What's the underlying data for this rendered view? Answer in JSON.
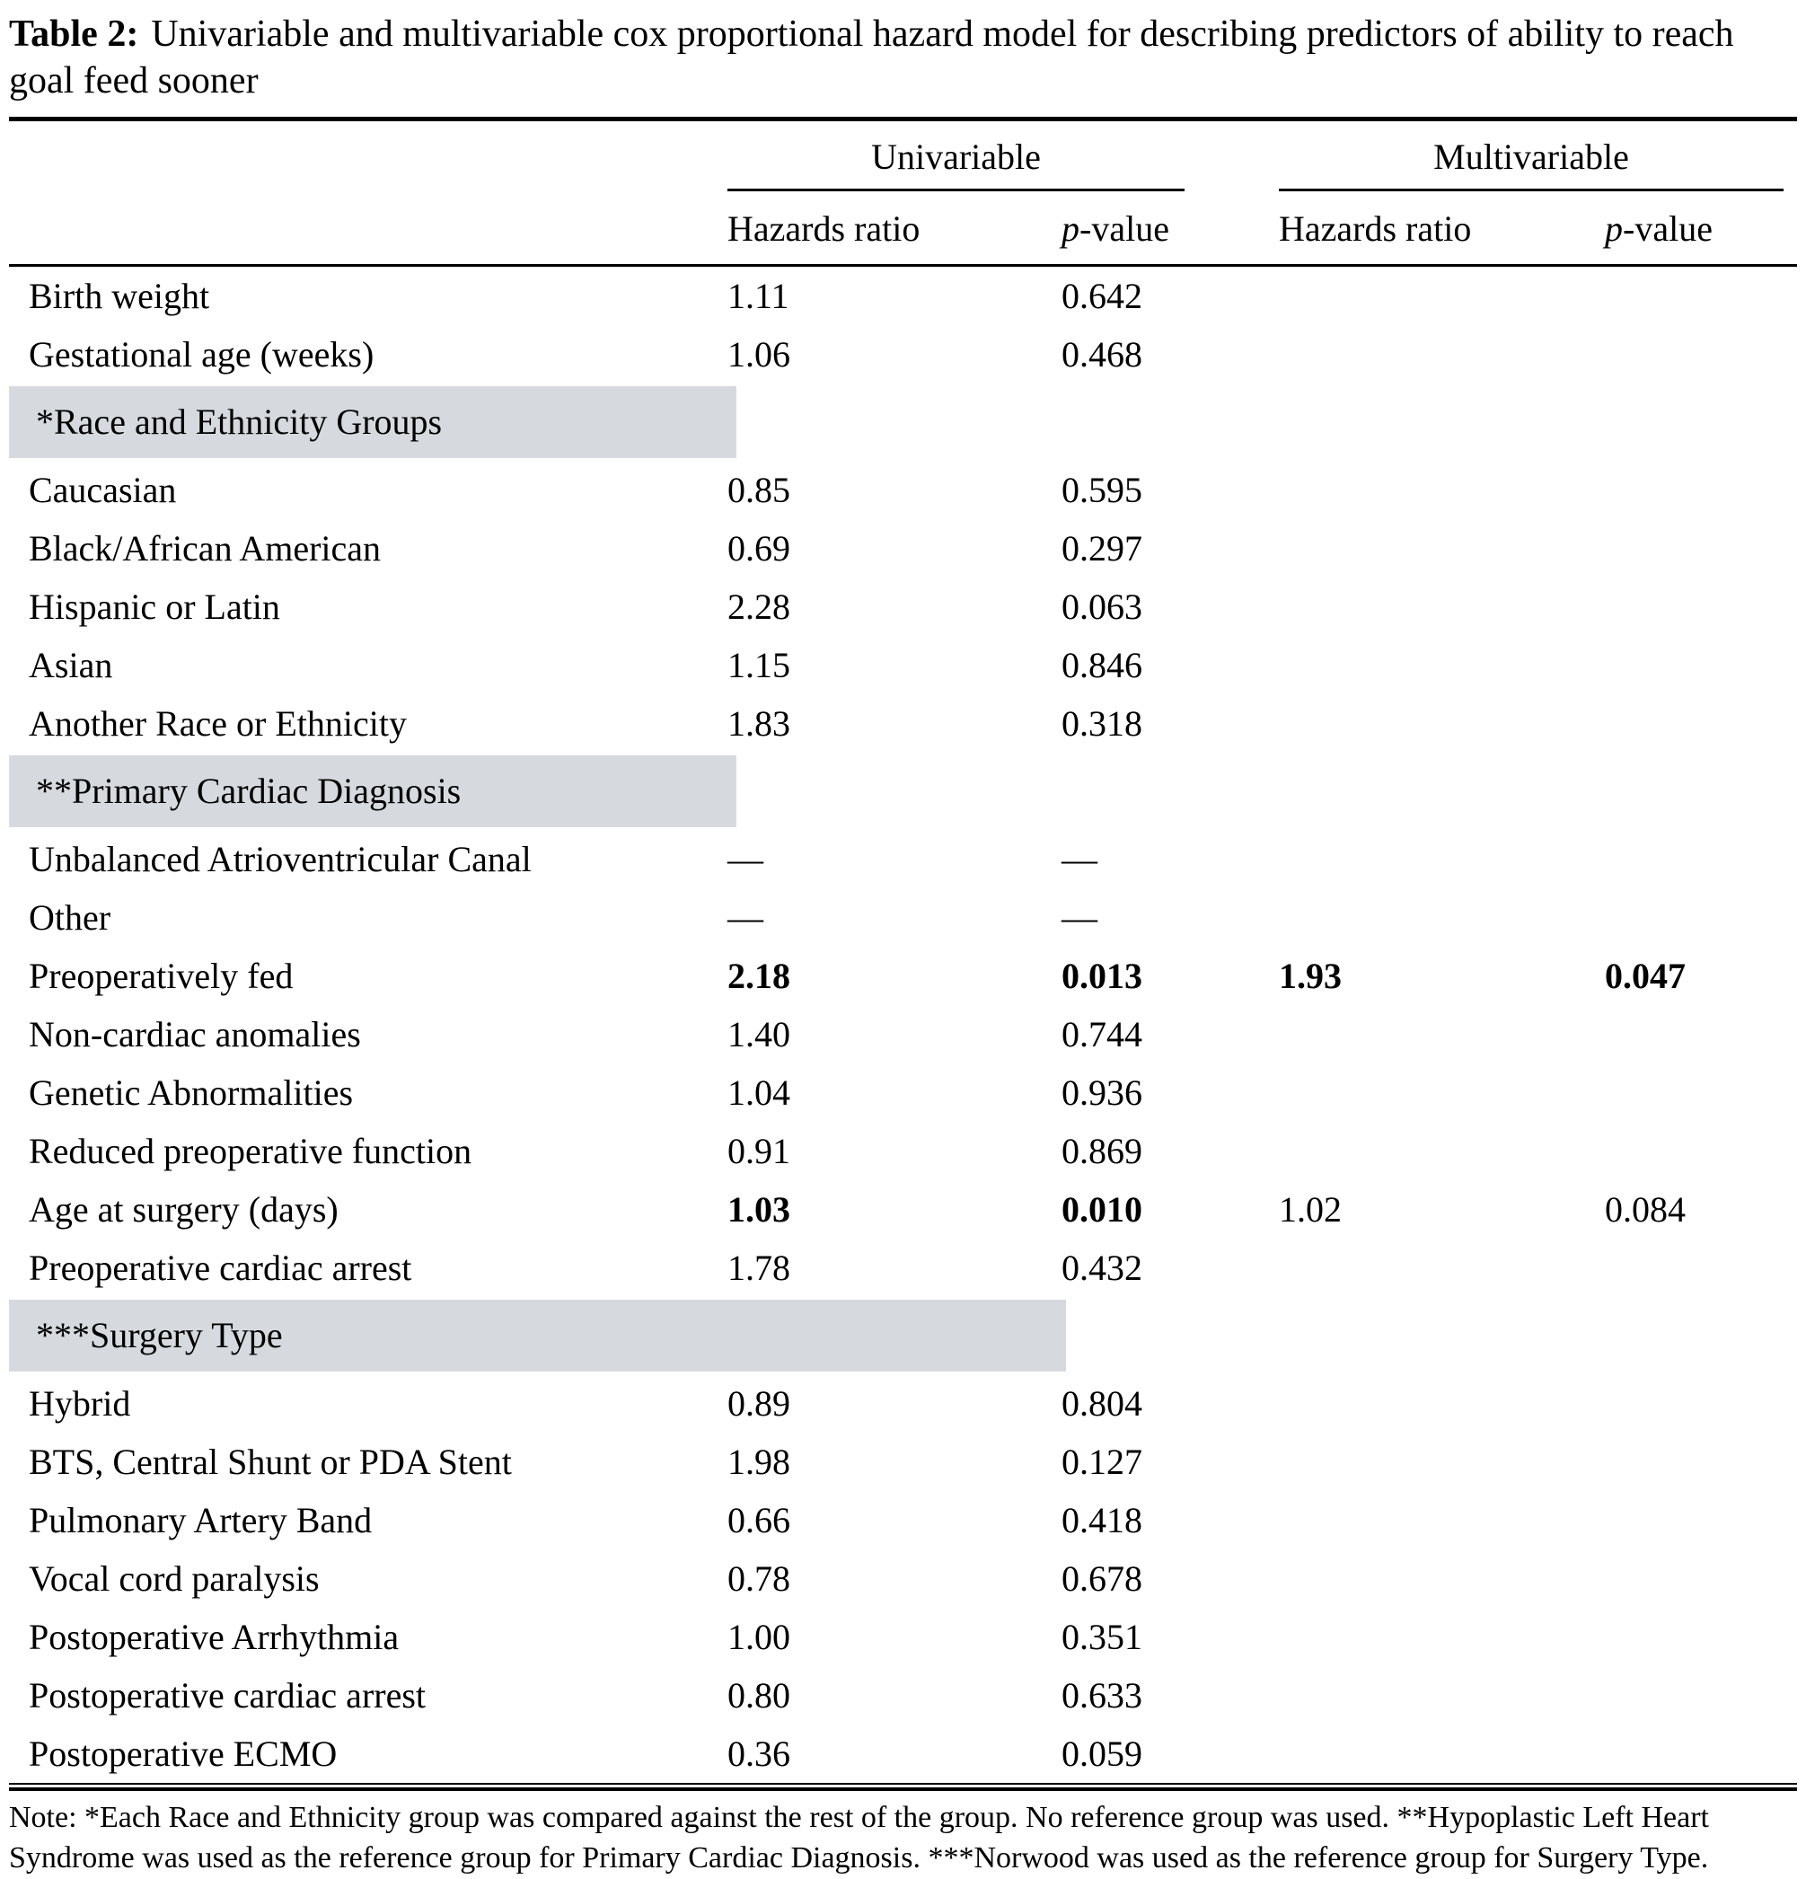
{
  "title": {
    "label": "Table 2:",
    "text": "Univariable and multivariable cox proportional hazard model for describing predictors of ability to reach goal feed sooner"
  },
  "header": {
    "univariable_label": "Univariable",
    "multivariable_label": "Multivariable",
    "hazards_ratio_label": "Hazards ratio",
    "p_label_italic": "p",
    "p_label_rest": "-value"
  },
  "section_band_color": "#d6dade",
  "rows": [
    {
      "type": "data",
      "label": "Birth weight",
      "uni_hr": "1.11",
      "uni_p": "0.642",
      "multi_hr": "",
      "multi_p": "",
      "bold_uni": false,
      "bold_multi": false
    },
    {
      "type": "data",
      "label": "Gestational age (weeks)",
      "uni_hr": "1.06",
      "uni_p": "0.468",
      "multi_hr": "",
      "multi_p": "",
      "bold_uni": false,
      "bold_multi": false
    },
    {
      "type": "section",
      "label": "*Race and Ethnicity Groups",
      "band": "narrow"
    },
    {
      "type": "data",
      "label": "Caucasian",
      "uni_hr": "0.85",
      "uni_p": "0.595",
      "multi_hr": "",
      "multi_p": "",
      "bold_uni": false,
      "bold_multi": false
    },
    {
      "type": "data",
      "label": "Black/African American",
      "uni_hr": "0.69",
      "uni_p": "0.297",
      "multi_hr": "",
      "multi_p": "",
      "bold_uni": false,
      "bold_multi": false
    },
    {
      "type": "data",
      "label": "Hispanic or Latin",
      "uni_hr": "2.28",
      "uni_p": "0.063",
      "multi_hr": "",
      "multi_p": "",
      "bold_uni": false,
      "bold_multi": false
    },
    {
      "type": "data",
      "label": "Asian",
      "uni_hr": "1.15",
      "uni_p": "0.846",
      "multi_hr": "",
      "multi_p": "",
      "bold_uni": false,
      "bold_multi": false
    },
    {
      "type": "data",
      "label": "Another Race or Ethnicity",
      "uni_hr": "1.83",
      "uni_p": "0.318",
      "multi_hr": "",
      "multi_p": "",
      "bold_uni": false,
      "bold_multi": false
    },
    {
      "type": "section",
      "label": "**Primary Cardiac Diagnosis",
      "band": "narrow"
    },
    {
      "type": "data",
      "label": "Unbalanced Atrioventricular Canal",
      "uni_hr": "—",
      "uni_p": "—",
      "multi_hr": "",
      "multi_p": "",
      "bold_uni": false,
      "bold_multi": false
    },
    {
      "type": "data",
      "label": "Other",
      "uni_hr": "—",
      "uni_p": "—",
      "multi_hr": "",
      "multi_p": "",
      "bold_uni": false,
      "bold_multi": false
    },
    {
      "type": "data",
      "label": "Preoperatively fed",
      "uni_hr": "2.18",
      "uni_p": "0.013",
      "multi_hr": "1.93",
      "multi_p": "0.047",
      "bold_uni": true,
      "bold_multi": true
    },
    {
      "type": "data",
      "label": "Non-cardiac anomalies",
      "uni_hr": "1.40",
      "uni_p": "0.744",
      "multi_hr": "",
      "multi_p": "",
      "bold_uni": false,
      "bold_multi": false
    },
    {
      "type": "data",
      "label": "Genetic Abnormalities",
      "uni_hr": "1.04",
      "uni_p": "0.936",
      "multi_hr": "",
      "multi_p": "",
      "bold_uni": false,
      "bold_multi": false
    },
    {
      "type": "data",
      "label": "Reduced preoperative function",
      "uni_hr": "0.91",
      "uni_p": "0.869",
      "multi_hr": "",
      "multi_p": "",
      "bold_uni": false,
      "bold_multi": false
    },
    {
      "type": "data",
      "label": "Age at surgery (days)",
      "uni_hr": "1.03",
      "uni_p": "0.010",
      "multi_hr": "1.02",
      "multi_p": "0.084",
      "bold_uni": true,
      "bold_multi": false
    },
    {
      "type": "data",
      "label": "Preoperative cardiac arrest",
      "uni_hr": "1.78",
      "uni_p": "0.432",
      "multi_hr": "",
      "multi_p": "",
      "bold_uni": false,
      "bold_multi": false
    },
    {
      "type": "section",
      "label": "***Surgery Type",
      "band": "wide"
    },
    {
      "type": "data",
      "label": "Hybrid",
      "uni_hr": "0.89",
      "uni_p": "0.804",
      "multi_hr": "",
      "multi_p": "",
      "bold_uni": false,
      "bold_multi": false
    },
    {
      "type": "data",
      "label": "BTS, Central Shunt or PDA Stent",
      "uni_hr": "1.98",
      "uni_p": "0.127",
      "multi_hr": "",
      "multi_p": "",
      "bold_uni": false,
      "bold_multi": false
    },
    {
      "type": "data",
      "label": "Pulmonary Artery Band",
      "uni_hr": "0.66",
      "uni_p": "0.418",
      "multi_hr": "",
      "multi_p": "",
      "bold_uni": false,
      "bold_multi": false
    },
    {
      "type": "data",
      "label": "Vocal cord paralysis",
      "uni_hr": "0.78",
      "uni_p": "0.678",
      "multi_hr": "",
      "multi_p": "",
      "bold_uni": false,
      "bold_multi": false
    },
    {
      "type": "data",
      "label": "Postoperative Arrhythmia",
      "uni_hr": "1.00",
      "uni_p": "0.351",
      "multi_hr": "",
      "multi_p": "",
      "bold_uni": false,
      "bold_multi": false
    },
    {
      "type": "data",
      "label": "Postoperative cardiac arrest",
      "uni_hr": "0.80",
      "uni_p": "0.633",
      "multi_hr": "",
      "multi_p": "",
      "bold_uni": false,
      "bold_multi": false
    },
    {
      "type": "data",
      "label": "Postoperative ECMO",
      "uni_hr": "0.36",
      "uni_p": "0.059",
      "multi_hr": "",
      "multi_p": "",
      "bold_uni": false,
      "bold_multi": false
    }
  ],
  "note": "Note: *Each Race and Ethnicity group was compared against the rest of the group. No reference group was used. **Hypoplastic Left Heart Syndrome was used as the reference group for Primary Cardiac Diagnosis. ***Norwood was used as the reference group for Surgery Type."
}
